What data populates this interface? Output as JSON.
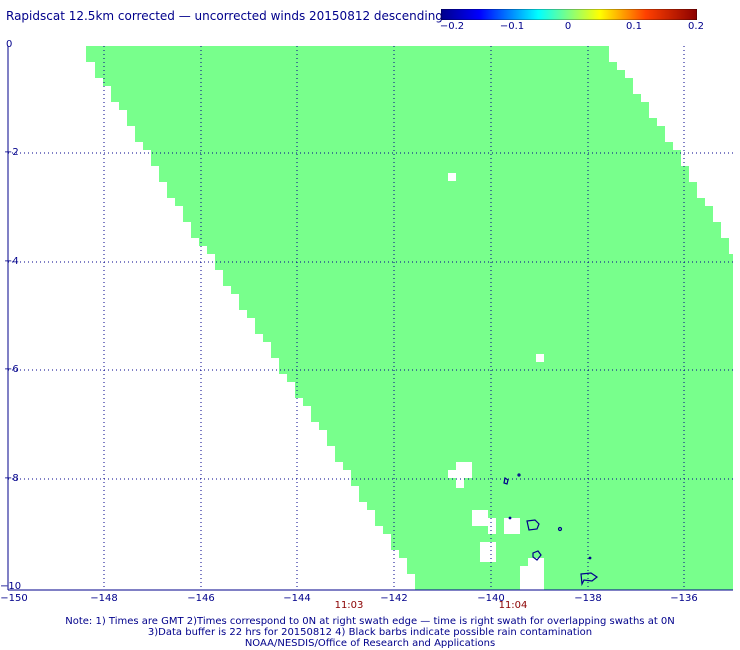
{
  "title": "Rapidscat 12.5km corrected — uncorrected winds 20150812 descending",
  "colorbar": {
    "labels": [
      "−0.2",
      "−0.1",
      "0",
      "0.1",
      "0.2"
    ],
    "colors": [
      "#00008b",
      "#0000ff",
      "#00ffff",
      "#80ff80",
      "#ffff00",
      "#ff8000",
      "#ff0000",
      "#8b0000"
    ]
  },
  "axes": {
    "y_labels": [
      "0",
      "−2",
      "−4",
      "−6",
      "−8",
      "−10"
    ],
    "x_labels": [
      "−150",
      "−148",
      "−146",
      "−144",
      "−142",
      "−140",
      "−138",
      "−136"
    ],
    "time_labels": [
      "11:03",
      "11:04"
    ],
    "lon_range": [
      -150,
      -135
    ],
    "lat_range": [
      -10,
      0
    ]
  },
  "swath_color": "#78ff8c",
  "notes": [
    "Note: 1) Times are GMT 2)Times correspond to 0N at right swath edge — time is right swath for overlapping swaths at 0N",
    "3)Data buffer is 22 hrs for 20150812 4) Black barbs indicate possible rain contamination",
    "NOAA/NESDIS/Office of Research and Applications"
  ]
}
